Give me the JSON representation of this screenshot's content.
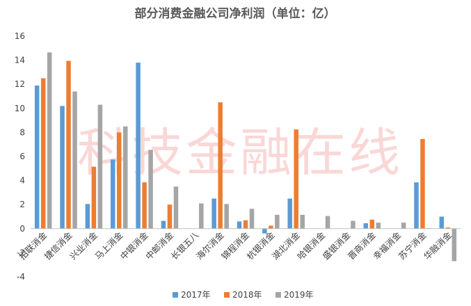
{
  "watermark": "科技金融在线",
  "chart_data": {
    "type": "bar",
    "title": "部分消费金融公司净利润（单位：亿）",
    "xlabel": "",
    "ylabel": "",
    "ylim": [
      -4,
      16
    ],
    "yticks": [
      -4,
      -2,
      0,
      2,
      4,
      6,
      8,
      10,
      12,
      14,
      16
    ],
    "grid": false,
    "legend_position": "bottom",
    "categories": [
      "招联消金",
      "捷信消金",
      "兴业消金",
      "马上消金",
      "中银消金",
      "中邮消金",
      "长银五八",
      "海尔消金",
      "锦程消金",
      "杭银消金",
      "湖北消金",
      "哈银消金",
      "盛银消金",
      "晋商消金",
      "幸福消金",
      "苏宁消金",
      "华融消金"
    ],
    "series": [
      {
        "name": "2017年",
        "color": "#5b9bd5",
        "values": [
          11.9,
          10.2,
          2.05,
          5.75,
          13.8,
          0.65,
          null,
          2.5,
          0.6,
          -0.4,
          2.5,
          null,
          null,
          0.45,
          null,
          3.85,
          1.0
        ]
      },
      {
        "name": "2018年",
        "color": "#ed7d31",
        "values": [
          12.5,
          13.95,
          5.15,
          8.0,
          3.85,
          2.0,
          null,
          10.5,
          0.7,
          0.25,
          8.25,
          null,
          null,
          0.75,
          null,
          7.45,
          0.1
        ]
      },
      {
        "name": "2019年",
        "color": "#a5a5a5",
        "values": [
          14.65,
          11.4,
          10.3,
          8.5,
          6.55,
          3.5,
          2.1,
          2.05,
          1.65,
          1.15,
          1.15,
          1.05,
          0.65,
          0.5,
          0.5,
          0.05,
          -2.7
        ]
      }
    ]
  }
}
